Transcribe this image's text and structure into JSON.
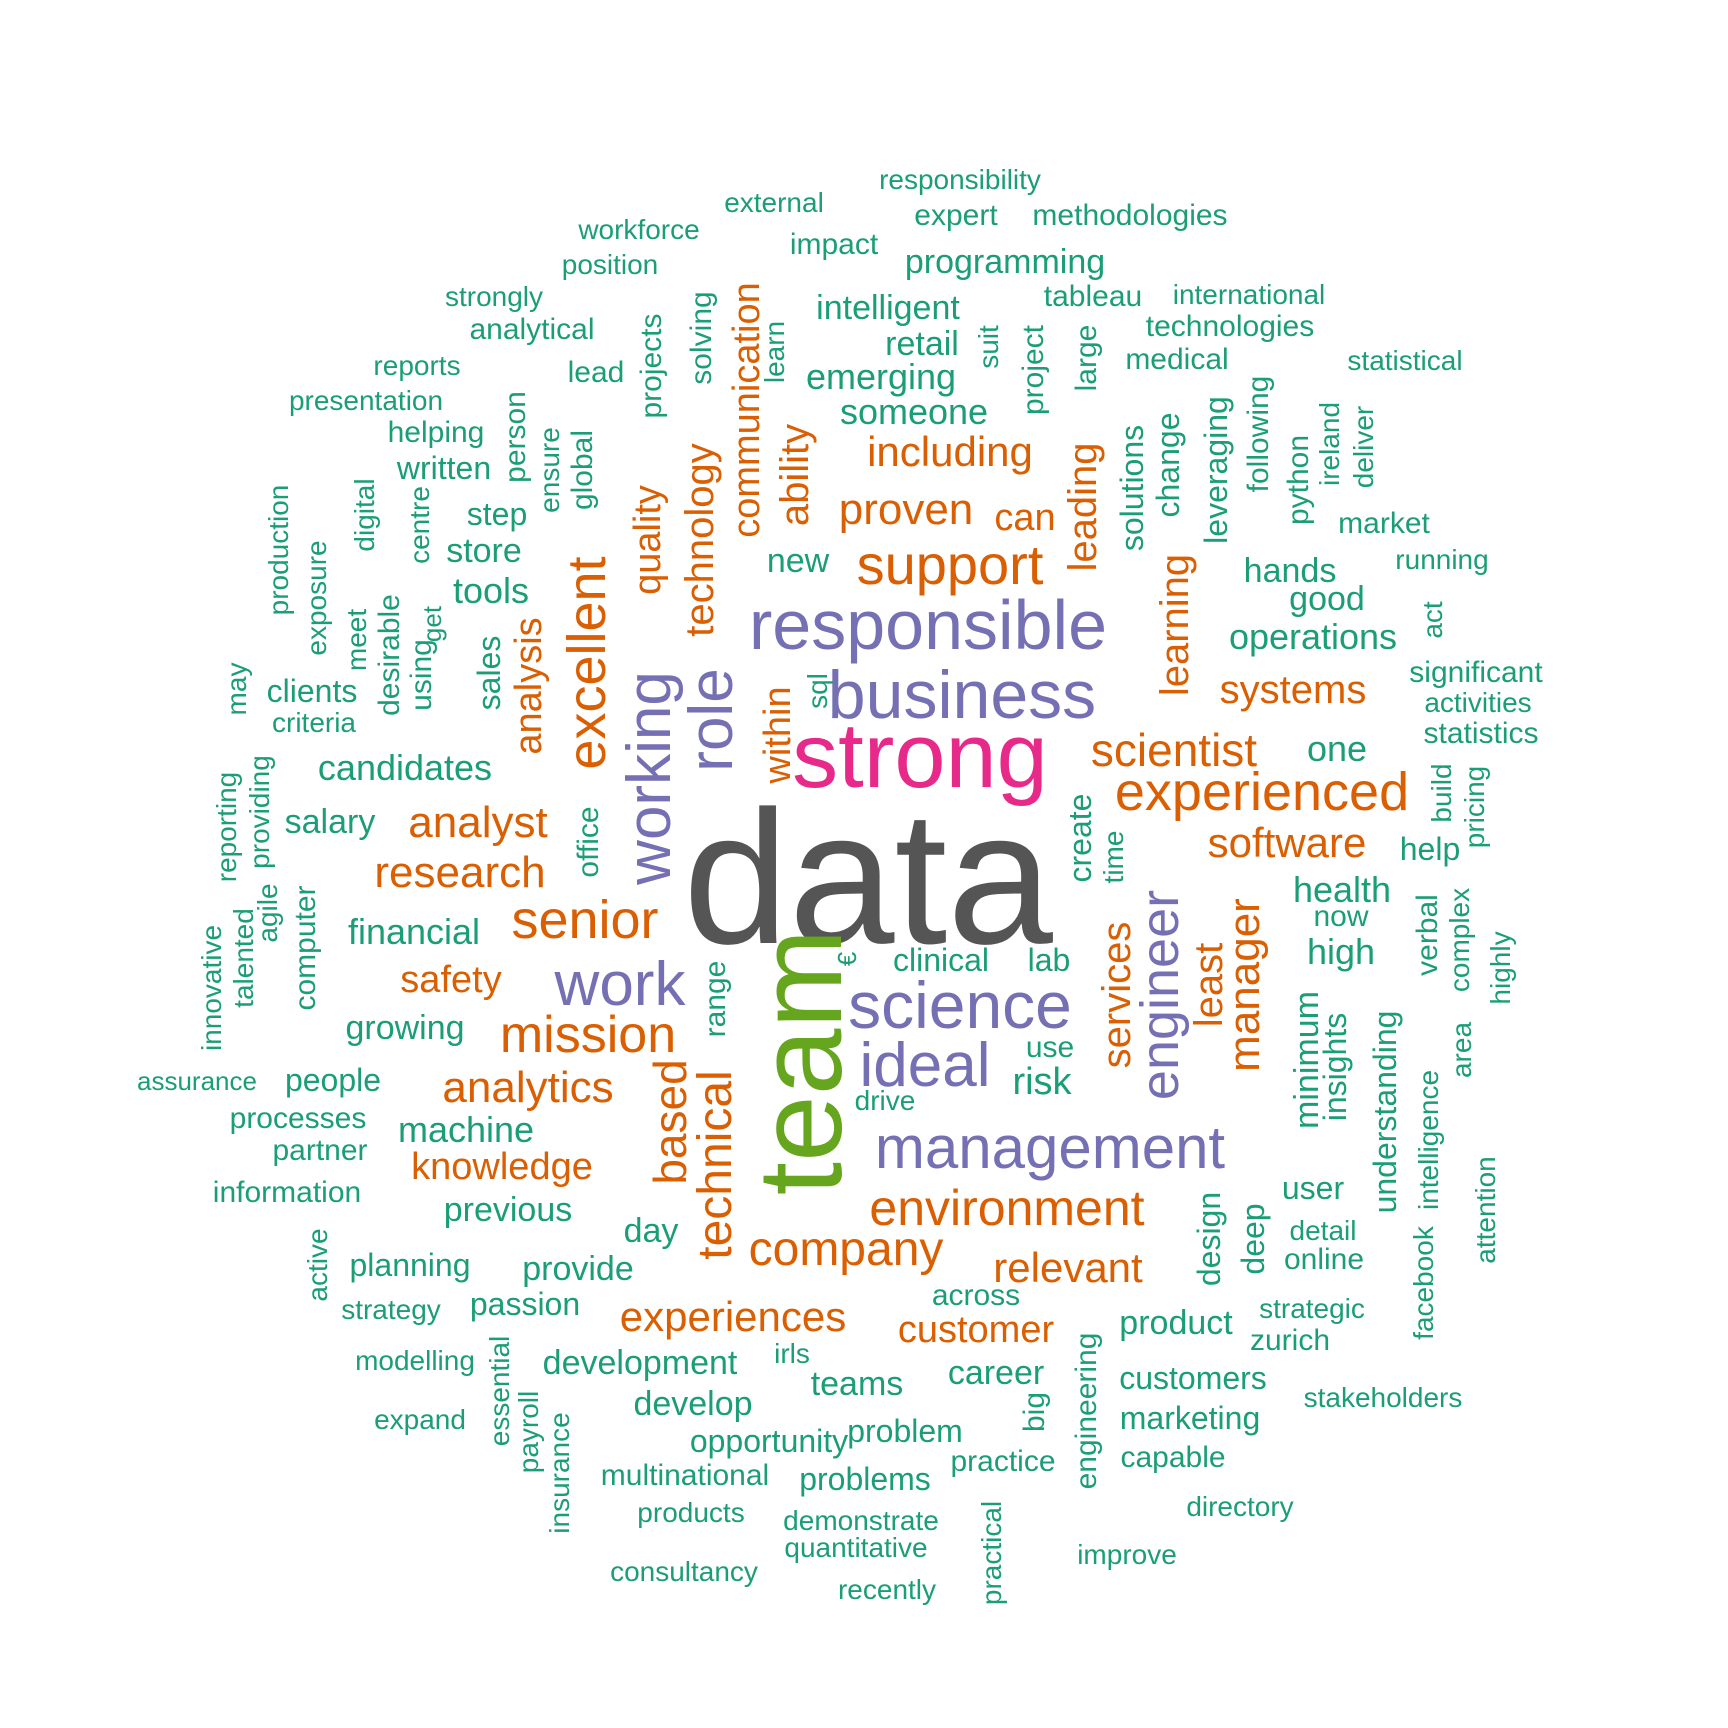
{
  "colors": {
    "grey": "#555555",
    "green": "#1b9e77",
    "orange": "#d95f02",
    "purple": "#7570b3",
    "magenta": "#e7298a",
    "olive": "#66a61e"
  },
  "words": [
    {
      "text": "data",
      "c": "grey"
    },
    {
      "text": "team",
      "c": "olive"
    },
    {
      "text": "strong",
      "c": "magenta"
    },
    {
      "text": "responsible",
      "c": "purple"
    },
    {
      "text": "business",
      "c": "purple"
    },
    {
      "text": "science",
      "c": "purple"
    },
    {
      "text": "management",
      "c": "purple"
    },
    {
      "text": "ideal",
      "c": "purple"
    },
    {
      "text": "work",
      "c": "purple"
    },
    {
      "text": "working",
      "c": "purple"
    },
    {
      "text": "role",
      "c": "purple"
    },
    {
      "text": "engineer",
      "c": "purple"
    },
    {
      "text": "experienced",
      "c": "orange"
    },
    {
      "text": "support",
      "c": "orange"
    },
    {
      "text": "environment",
      "c": "orange"
    },
    {
      "text": "excellent",
      "c": "orange"
    },
    {
      "text": "senior",
      "c": "orange"
    },
    {
      "text": "mission",
      "c": "orange"
    },
    {
      "text": "company",
      "c": "orange"
    },
    {
      "text": "technical",
      "c": "orange"
    },
    {
      "text": "scientist",
      "c": "orange"
    },
    {
      "text": "research",
      "c": "orange"
    },
    {
      "text": "analyst",
      "c": "orange"
    },
    {
      "text": "analytics",
      "c": "orange"
    },
    {
      "text": "experiences",
      "c": "orange"
    },
    {
      "text": "based",
      "c": "orange"
    },
    {
      "text": "manager",
      "c": "orange"
    },
    {
      "text": "software",
      "c": "orange"
    },
    {
      "text": "proven",
      "c": "orange"
    },
    {
      "text": "including",
      "c": "orange"
    },
    {
      "text": "relevant",
      "c": "orange"
    },
    {
      "text": "knowledge",
      "c": "orange"
    },
    {
      "text": "customer",
      "c": "orange"
    },
    {
      "text": "services",
      "c": "orange"
    },
    {
      "text": "learning",
      "c": "orange"
    },
    {
      "text": "leading",
      "c": "orange"
    },
    {
      "text": "technology",
      "c": "orange"
    },
    {
      "text": "communication",
      "c": "orange"
    },
    {
      "text": "ability",
      "c": "orange"
    },
    {
      "text": "systems",
      "c": "orange"
    },
    {
      "text": "can",
      "c": "orange"
    },
    {
      "text": "safety",
      "c": "orange"
    },
    {
      "text": "quality",
      "c": "orange"
    },
    {
      "text": "within",
      "c": "orange"
    },
    {
      "text": "least",
      "c": "orange"
    },
    {
      "text": "analysis",
      "c": "orange"
    },
    {
      "text": "candidates",
      "c": "green"
    },
    {
      "text": "financial",
      "c": "green"
    },
    {
      "text": "salary",
      "c": "green"
    },
    {
      "text": "growing",
      "c": "green"
    },
    {
      "text": "people",
      "c": "green"
    },
    {
      "text": "machine",
      "c": "green"
    },
    {
      "text": "previous",
      "c": "green"
    },
    {
      "text": "planning",
      "c": "green"
    },
    {
      "text": "provide",
      "c": "green"
    },
    {
      "text": "day",
      "c": "green"
    },
    {
      "text": "development",
      "c": "green"
    },
    {
      "text": "develop",
      "c": "green"
    },
    {
      "text": "opportunity",
      "c": "green"
    },
    {
      "text": "teams",
      "c": "green"
    },
    {
      "text": "career",
      "c": "green"
    },
    {
      "text": "problem",
      "c": "green"
    },
    {
      "text": "problems",
      "c": "green"
    },
    {
      "text": "multinational",
      "c": "green"
    },
    {
      "text": "products",
      "c": "green"
    },
    {
      "text": "demonstrate",
      "c": "green"
    },
    {
      "text": "quantitative",
      "c": "green"
    },
    {
      "text": "consultancy",
      "c": "green"
    },
    {
      "text": "recently",
      "c": "green"
    },
    {
      "text": "practice",
      "c": "green"
    },
    {
      "text": "practical",
      "c": "green"
    },
    {
      "text": "improve",
      "c": "green"
    },
    {
      "text": "directory",
      "c": "green"
    },
    {
      "text": "capable",
      "c": "green"
    },
    {
      "text": "marketing",
      "c": "green"
    },
    {
      "text": "customers",
      "c": "green"
    },
    {
      "text": "stakeholders",
      "c": "green"
    },
    {
      "text": "zurich",
      "c": "green"
    },
    {
      "text": "strategic",
      "c": "green"
    },
    {
      "text": "product",
      "c": "green"
    },
    {
      "text": "online",
      "c": "green"
    },
    {
      "text": "detail",
      "c": "green"
    },
    {
      "text": "user",
      "c": "green"
    },
    {
      "text": "across",
      "c": "green"
    },
    {
      "text": "passion",
      "c": "green"
    },
    {
      "text": "strategy",
      "c": "green"
    },
    {
      "text": "modelling",
      "c": "green"
    },
    {
      "text": "expand",
      "c": "green"
    },
    {
      "text": "information",
      "c": "green"
    },
    {
      "text": "partner",
      "c": "green"
    },
    {
      "text": "processes",
      "c": "green"
    },
    {
      "text": "assurance",
      "c": "green"
    },
    {
      "text": "risk",
      "c": "green"
    },
    {
      "text": "use",
      "c": "green"
    },
    {
      "text": "drive",
      "c": "green"
    },
    {
      "text": "clinical",
      "c": "green"
    },
    {
      "text": "lab",
      "c": "green"
    },
    {
      "text": "health",
      "c": "green"
    },
    {
      "text": "now",
      "c": "green"
    },
    {
      "text": "high",
      "c": "green"
    },
    {
      "text": "help",
      "c": "green"
    },
    {
      "text": "one",
      "c": "green"
    },
    {
      "text": "statistics",
      "c": "green"
    },
    {
      "text": "activities",
      "c": "green"
    },
    {
      "text": "significant",
      "c": "green"
    },
    {
      "text": "operations",
      "c": "green"
    },
    {
      "text": "good",
      "c": "green"
    },
    {
      "text": "hands",
      "c": "green"
    },
    {
      "text": "running",
      "c": "green"
    },
    {
      "text": "market",
      "c": "green"
    },
    {
      "text": "statistical",
      "c": "green"
    },
    {
      "text": "medical",
      "c": "green"
    },
    {
      "text": "technologies",
      "c": "green"
    },
    {
      "text": "international",
      "c": "green"
    },
    {
      "text": "tableau",
      "c": "green"
    },
    {
      "text": "methodologies",
      "c": "green"
    },
    {
      "text": "expert",
      "c": "green"
    },
    {
      "text": "responsibility",
      "c": "green"
    },
    {
      "text": "external",
      "c": "green"
    },
    {
      "text": "workforce",
      "c": "green"
    },
    {
      "text": "position",
      "c": "green"
    },
    {
      "text": "impact",
      "c": "green"
    },
    {
      "text": "programming",
      "c": "green"
    },
    {
      "text": "intelligent",
      "c": "green"
    },
    {
      "text": "retail",
      "c": "green"
    },
    {
      "text": "emerging",
      "c": "green"
    },
    {
      "text": "someone",
      "c": "green"
    },
    {
      "text": "strongly",
      "c": "green"
    },
    {
      "text": "analytical",
      "c": "green"
    },
    {
      "text": "reports",
      "c": "green"
    },
    {
      "text": "presentation",
      "c": "green"
    },
    {
      "text": "helping",
      "c": "green"
    },
    {
      "text": "written",
      "c": "green"
    },
    {
      "text": "lead",
      "c": "green"
    },
    {
      "text": "step",
      "c": "green"
    },
    {
      "text": "store",
      "c": "green"
    },
    {
      "text": "tools",
      "c": "green"
    },
    {
      "text": "new",
      "c": "green"
    },
    {
      "text": "clients",
      "c": "green"
    },
    {
      "text": "criteria",
      "c": "green"
    },
    {
      "text": "production",
      "c": "green"
    },
    {
      "text": "exposure",
      "c": "green"
    },
    {
      "text": "digital",
      "c": "green"
    },
    {
      "text": "meet",
      "c": "green"
    },
    {
      "text": "desirable",
      "c": "green"
    },
    {
      "text": "centre",
      "c": "green"
    },
    {
      "text": "using",
      "c": "green"
    },
    {
      "text": "get",
      "c": "green"
    },
    {
      "text": "sales",
      "c": "green"
    },
    {
      "text": "person",
      "c": "green"
    },
    {
      "text": "ensure",
      "c": "green"
    },
    {
      "text": "global",
      "c": "green"
    },
    {
      "text": "projects",
      "c": "green"
    },
    {
      "text": "solving",
      "c": "green"
    },
    {
      "text": "learn",
      "c": "green"
    },
    {
      "text": "suit",
      "c": "green"
    },
    {
      "text": "project",
      "c": "green"
    },
    {
      "text": "large",
      "c": "green"
    },
    {
      "text": "solutions",
      "c": "green"
    },
    {
      "text": "change",
      "c": "green"
    },
    {
      "text": "leveraging",
      "c": "green"
    },
    {
      "text": "following",
      "c": "green"
    },
    {
      "text": "python",
      "c": "green"
    },
    {
      "text": "ireland",
      "c": "green"
    },
    {
      "text": "deliver",
      "c": "green"
    },
    {
      "text": "act",
      "c": "green"
    },
    {
      "text": "sql",
      "c": "green"
    },
    {
      "text": "may",
      "c": "green"
    },
    {
      "text": "providing",
      "c": "green"
    },
    {
      "text": "reporting",
      "c": "green"
    },
    {
      "text": "agile",
      "c": "green"
    },
    {
      "text": "talented",
      "c": "green"
    },
    {
      "text": "innovative",
      "c": "green"
    },
    {
      "text": "computer",
      "c": "green"
    },
    {
      "text": "office",
      "c": "green"
    },
    {
      "text": "create",
      "c": "green"
    },
    {
      "text": "time",
      "c": "green"
    },
    {
      "text": "€",
      "c": "green"
    },
    {
      "text": "range",
      "c": "green"
    },
    {
      "text": "minimum",
      "c": "green"
    },
    {
      "text": "insights",
      "c": "green"
    },
    {
      "text": "understanding",
      "c": "green"
    },
    {
      "text": "design",
      "c": "green"
    },
    {
      "text": "deep",
      "c": "green"
    },
    {
      "text": "build",
      "c": "green"
    },
    {
      "text": "pricing",
      "c": "green"
    },
    {
      "text": "verbal",
      "c": "green"
    },
    {
      "text": "complex",
      "c": "green"
    },
    {
      "text": "highly",
      "c": "green"
    },
    {
      "text": "area",
      "c": "green"
    },
    {
      "text": "intelligence",
      "c": "green"
    },
    {
      "text": "attention",
      "c": "green"
    },
    {
      "text": "facebook",
      "c": "green"
    },
    {
      "text": "active",
      "c": "green"
    },
    {
      "text": "essential",
      "c": "green"
    },
    {
      "text": "payroll",
      "c": "green"
    },
    {
      "text": "insurance",
      "c": "green"
    },
    {
      "text": "irls",
      "c": "green"
    },
    {
      "text": "engineering",
      "c": "green"
    },
    {
      "text": "big",
      "c": "green"
    }
  ]
}
